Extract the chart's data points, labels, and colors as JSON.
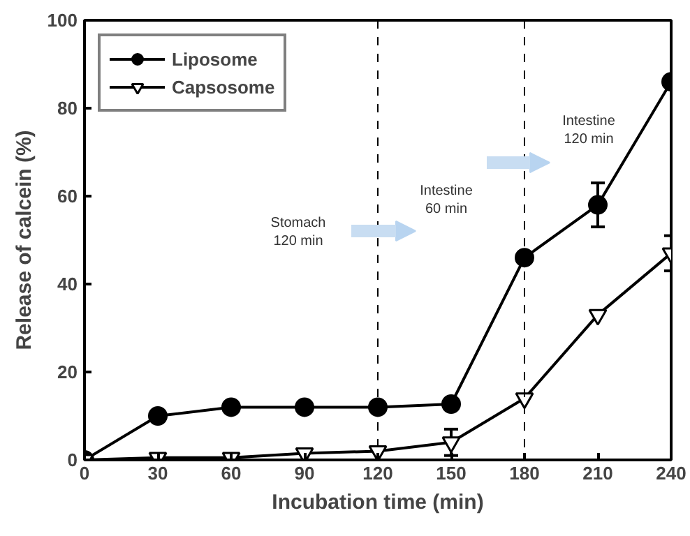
{
  "chart_data": {
    "type": "line",
    "xlabel": "Incubation time (min)",
    "ylabel": "Release of calcein (%)",
    "x": [
      0,
      30,
      60,
      90,
      120,
      150,
      180,
      210,
      240
    ],
    "series": [
      {
        "name": "Liposome",
        "color": "#000000",
        "marker": "circle",
        "values": [
          0,
          10,
          12,
          12,
          12,
          12.7,
          46,
          58,
          86
        ],
        "errors": [
          null,
          null,
          null,
          null,
          null,
          null,
          null,
          5,
          null
        ]
      },
      {
        "name": "Capsosome",
        "color": "#000000",
        "marker": "triangle",
        "values": [
          0,
          0.5,
          0.5,
          1.5,
          2,
          4,
          14,
          33,
          47
        ],
        "errors": [
          null,
          null,
          null,
          null,
          null,
          3,
          null,
          null,
          4
        ]
      }
    ],
    "xlim": [
      0,
      240
    ],
    "xticks": [
      0,
      30,
      60,
      90,
      120,
      150,
      180,
      210,
      240
    ],
    "ylim": [
      0,
      100
    ],
    "yticks": [
      0,
      20,
      40,
      60,
      80,
      100
    ],
    "ref_lines": [
      {
        "axis": "x",
        "value": 120,
        "line_style": "dashed",
        "color": "#000000"
      },
      {
        "axis": "x",
        "value": 180,
        "line_style": "dashed",
        "color": "#000000"
      }
    ],
    "annotations": [
      "Stomach\n120 min",
      "Intestine\n60 min",
      "Intestine\n120 min"
    ],
    "grid": false,
    "legend": "top left",
    "line_style": "solid"
  }
}
